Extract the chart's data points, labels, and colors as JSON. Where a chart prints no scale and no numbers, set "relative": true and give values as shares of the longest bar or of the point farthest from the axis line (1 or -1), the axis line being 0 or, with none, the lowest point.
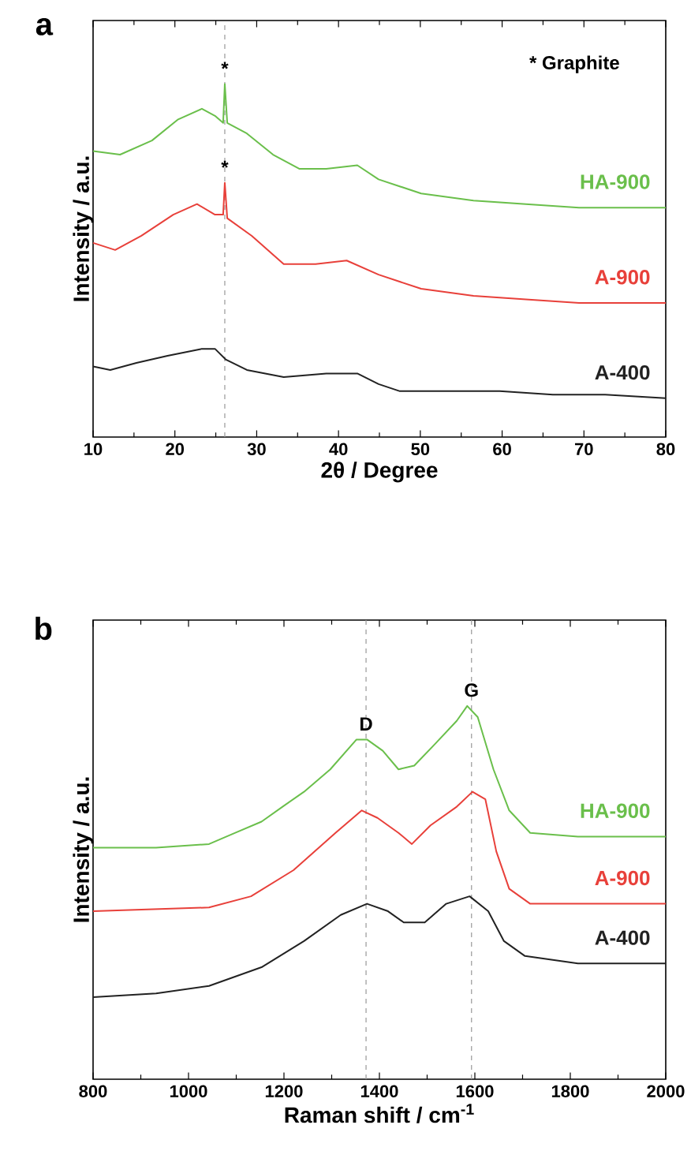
{
  "chart_data": [
    {
      "type": "line",
      "relative": true,
      "xlabel": "2θ / Degree",
      "ylabel": "Intensity / a.u.",
      "xlim": [
        10,
        80
      ],
      "xticks": [
        10,
        20,
        30,
        40,
        50,
        60,
        70,
        80
      ],
      "tick_labels": "x",
      "annotations": [
        "a",
        "* Graphite",
        {
          "text": "*",
          "x": 26.1,
          "y": 1.0
        },
        {
          "text": "*",
          "x": 26.1,
          "y": 0.72
        }
      ],
      "ref_lines": [
        {
          "axis": "x",
          "value": 26.1,
          "color": "#999999",
          "line_style": "dashed"
        }
      ],
      "series": [
        {
          "name": "HA-900",
          "color": "#6abf4b",
          "x": [
            10,
            13.3,
            17.2,
            20.4,
            23.3,
            24.9,
            25.9,
            26.1,
            26.4,
            28.8,
            32.0,
            35.2,
            38.5,
            42.3,
            44.9,
            50.1,
            56.5,
            62.9,
            69.4,
            80
          ],
          "values": [
            0.81,
            0.8,
            0.84,
            0.9,
            0.93,
            0.91,
            0.89,
            1.0,
            0.89,
            0.86,
            0.8,
            0.76,
            0.76,
            0.77,
            0.73,
            0.69,
            0.67,
            0.66,
            0.65,
            0.65
          ]
        },
        {
          "name": "A-900",
          "color": "#e8403a",
          "x": [
            10,
            12.7,
            15.9,
            19.8,
            22.7,
            24.9,
            25.9,
            26.1,
            26.4,
            29.4,
            33.3,
            37.2,
            41.0,
            44.9,
            50.1,
            56.5,
            62.9,
            69.4,
            80
          ],
          "values": [
            0.55,
            0.53,
            0.57,
            0.63,
            0.66,
            0.63,
            0.63,
            0.72,
            0.62,
            0.57,
            0.49,
            0.49,
            0.5,
            0.46,
            0.42,
            0.4,
            0.39,
            0.38,
            0.38
          ]
        },
        {
          "name": "A-400",
          "color": "#222222",
          "x": [
            10,
            12.1,
            15.3,
            19.1,
            23.3,
            24.9,
            26.2,
            28.8,
            33.3,
            38.5,
            42.3,
            44.9,
            47.5,
            53.3,
            59.7,
            66.2,
            72.6,
            80
          ],
          "values": [
            0.2,
            0.19,
            0.21,
            0.23,
            0.25,
            0.25,
            0.22,
            0.19,
            0.17,
            0.18,
            0.18,
            0.15,
            0.13,
            0.13,
            0.13,
            0.12,
            0.12,
            0.11
          ]
        }
      ]
    },
    {
      "type": "line",
      "relative": true,
      "xlabel": "Raman shift / cm$^{-1}$",
      "ylabel": "Intensity / a.u.",
      "xlim": [
        800,
        2000
      ],
      "xticks": [
        800,
        1000,
        1200,
        1400,
        1600,
        1800,
        2000
      ],
      "tick_labels": "x",
      "annotations": [
        "b",
        {
          "text": "D",
          "x": 1372,
          "y": 0.91
        },
        {
          "text": "G",
          "x": 1593,
          "y": 1.0
        }
      ],
      "ref_lines": [
        {
          "axis": "x",
          "value": 1372,
          "color": "#999999",
          "line_style": "dashed"
        },
        {
          "axis": "x",
          "value": 1593,
          "color": "#999999",
          "line_style": "dashed"
        }
      ],
      "series": [
        {
          "name": "HA-900",
          "color": "#6abf4b",
          "x": [
            800,
            932,
            1043,
            1098,
            1153,
            1197,
            1242,
            1297,
            1352,
            1374,
            1407,
            1440,
            1473,
            1518,
            1562,
            1584,
            1606,
            1639,
            1672,
            1716,
            1816,
            2000
          ],
          "values": [
            0.62,
            0.62,
            0.63,
            0.66,
            0.69,
            0.73,
            0.77,
            0.83,
            0.91,
            0.91,
            0.88,
            0.83,
            0.84,
            0.9,
            0.96,
            1.0,
            0.97,
            0.83,
            0.72,
            0.66,
            0.65,
            0.65
          ]
        },
        {
          "name": "A-900",
          "color": "#e8403a",
          "x": [
            800,
            1043,
            1131,
            1220,
            1308,
            1363,
            1396,
            1440,
            1468,
            1507,
            1562,
            1595,
            1622,
            1645,
            1672,
            1716,
            1816,
            2000
          ],
          "values": [
            0.45,
            0.46,
            0.49,
            0.56,
            0.66,
            0.72,
            0.7,
            0.66,
            0.63,
            0.68,
            0.73,
            0.77,
            0.75,
            0.61,
            0.51,
            0.47,
            0.47,
            0.47
          ]
        },
        {
          "name": "A-400",
          "color": "#222222",
          "x": [
            800,
            932,
            1043,
            1153,
            1242,
            1319,
            1374,
            1418,
            1451,
            1495,
            1540,
            1589,
            1628,
            1661,
            1705,
            1816,
            2000
          ],
          "values": [
            0.22,
            0.23,
            0.25,
            0.3,
            0.37,
            0.44,
            0.47,
            0.45,
            0.42,
            0.42,
            0.47,
            0.49,
            0.45,
            0.37,
            0.33,
            0.31,
            0.31
          ]
        }
      ]
    }
  ]
}
